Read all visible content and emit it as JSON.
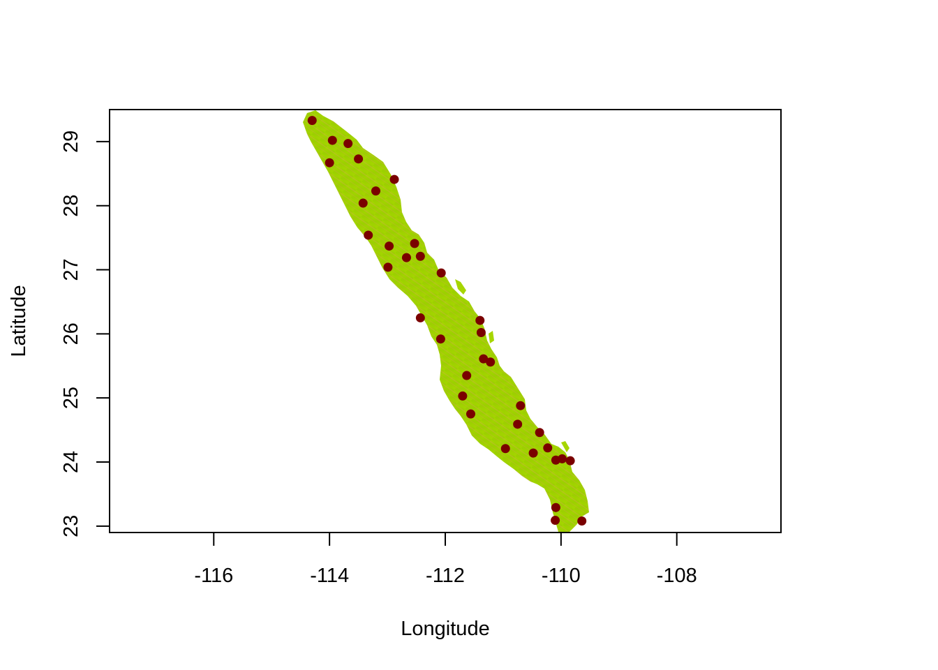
{
  "chart_data": {
    "type": "scatter",
    "title": "",
    "xlabel": "Longitude",
    "ylabel": "Latitude",
    "xlim": [
      -117.8,
      -106.2
    ],
    "ylim": [
      22.9,
      29.5
    ],
    "x_ticks": [
      -116,
      -114,
      -112,
      -110,
      -108
    ],
    "y_ticks": [
      23,
      24,
      25,
      26,
      27,
      28,
      29
    ],
    "x_tick_labels": [
      "-116",
      "-114",
      "-112",
      "-110",
      "-108"
    ],
    "y_tick_labels": [
      "23",
      "24",
      "25",
      "26",
      "27",
      "28",
      "29"
    ],
    "grid": false,
    "background_raster": "elevation map of the Baja California Sur peninsula (green to tan)",
    "point_color": "#7a0000",
    "raster_colors": [
      "#a6d600",
      "#96cc00",
      "#c8b040",
      "#d89858"
    ],
    "points": [
      {
        "x": -114.3,
        "y": 29.33
      },
      {
        "x": -113.95,
        "y": 29.02
      },
      {
        "x": -113.68,
        "y": 28.97
      },
      {
        "x": -114.0,
        "y": 28.67
      },
      {
        "x": -113.5,
        "y": 28.73
      },
      {
        "x": -112.88,
        "y": 28.41
      },
      {
        "x": -113.2,
        "y": 28.23
      },
      {
        "x": -113.42,
        "y": 28.04
      },
      {
        "x": -113.33,
        "y": 27.54
      },
      {
        "x": -112.97,
        "y": 27.37
      },
      {
        "x": -112.53,
        "y": 27.41
      },
      {
        "x": -112.67,
        "y": 27.19
      },
      {
        "x": -112.43,
        "y": 27.21
      },
      {
        "x": -112.99,
        "y": 27.04
      },
      {
        "x": -112.07,
        "y": 26.95
      },
      {
        "x": -112.43,
        "y": 26.25
      },
      {
        "x": -111.4,
        "y": 26.21
      },
      {
        "x": -111.38,
        "y": 26.02
      },
      {
        "x": -112.08,
        "y": 25.92
      },
      {
        "x": -111.34,
        "y": 25.61
      },
      {
        "x": -111.22,
        "y": 25.56
      },
      {
        "x": -111.63,
        "y": 25.35
      },
      {
        "x": -111.7,
        "y": 25.03
      },
      {
        "x": -110.7,
        "y": 24.88
      },
      {
        "x": -111.56,
        "y": 24.75
      },
      {
        "x": -110.75,
        "y": 24.59
      },
      {
        "x": -110.37,
        "y": 24.46
      },
      {
        "x": -110.96,
        "y": 24.21
      },
      {
        "x": -110.23,
        "y": 24.22
      },
      {
        "x": -110.48,
        "y": 24.14
      },
      {
        "x": -110.09,
        "y": 24.03
      },
      {
        "x": -109.98,
        "y": 24.05
      },
      {
        "x": -109.84,
        "y": 24.02
      },
      {
        "x": -110.09,
        "y": 23.29
      },
      {
        "x": -110.1,
        "y": 23.09
      },
      {
        "x": -109.64,
        "y": 23.08
      }
    ]
  }
}
